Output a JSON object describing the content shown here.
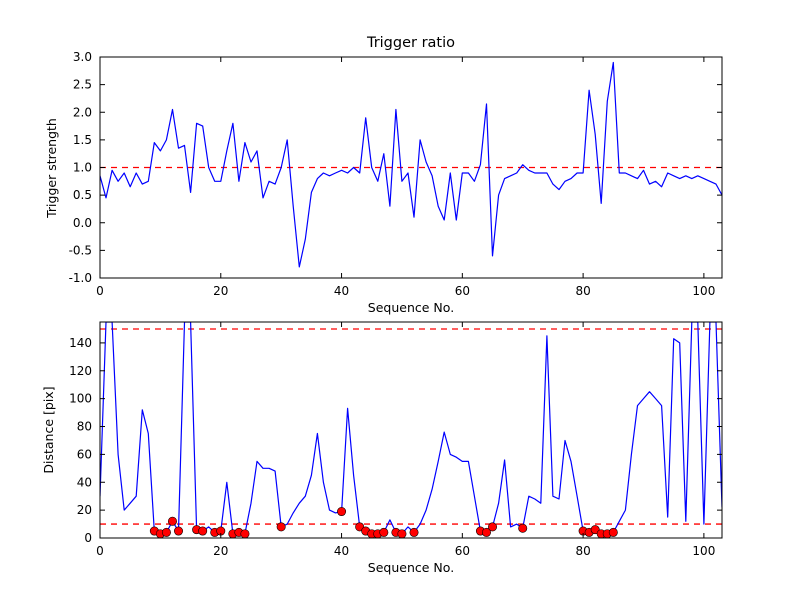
{
  "figure": {
    "background": "#ffffff",
    "border_color": "#000000"
  },
  "chart_data": [
    {
      "type": "line",
      "title": "Trigger ratio",
      "xlabel": "Sequence No.",
      "ylabel": "Trigger strength",
      "xlim": [
        0,
        103
      ],
      "ylim": [
        -1.0,
        3.0
      ],
      "grid": false,
      "legend": "none",
      "xticks": [
        0,
        20,
        40,
        60,
        80,
        100
      ],
      "xtick_labels": [
        "0",
        "20",
        "40",
        "60",
        "80",
        "100"
      ],
      "yticks": [
        -1.0,
        -0.5,
        0.0,
        0.5,
        1.0,
        1.5,
        2.0,
        2.5,
        3.0
      ],
      "ytick_labels": [
        "-1.0",
        "-0.5",
        "0.0",
        "0.5",
        "1.0",
        "1.5",
        "2.0",
        "2.5",
        "3.0"
      ],
      "threshold_color": "#ff0000",
      "threshold_style": "dashed",
      "thresholds": [
        1.0
      ],
      "series": [
        {
          "name": "trigger-strength",
          "color": "#0000ff",
          "x_start": 0,
          "x_step": 1,
          "values": [
            0.85,
            0.45,
            0.95,
            0.75,
            0.9,
            0.65,
            0.9,
            0.7,
            0.75,
            1.45,
            1.3,
            1.5,
            2.05,
            1.35,
            1.4,
            0.55,
            1.8,
            1.75,
            1.0,
            0.75,
            0.75,
            1.3,
            1.8,
            0.75,
            1.45,
            1.1,
            1.3,
            0.45,
            0.75,
            0.7,
            1.0,
            1.5,
            0.3,
            -0.8,
            -0.3,
            0.55,
            0.8,
            0.9,
            0.85,
            0.9,
            0.95,
            0.9,
            1.0,
            0.9,
            1.9,
            1.0,
            0.75,
            1.25,
            0.3,
            2.05,
            0.75,
            0.9,
            0.1,
            1.5,
            1.1,
            0.85,
            0.3,
            0.05,
            0.9,
            0.05,
            0.9,
            0.9,
            0.75,
            1.05,
            2.15,
            -0.6,
            0.5,
            0.8,
            0.85,
            0.9,
            1.05,
            0.95,
            0.9,
            0.9,
            0.9,
            0.7,
            0.6,
            0.75,
            0.8,
            0.9,
            0.9,
            2.4,
            1.6,
            0.35,
            2.2,
            2.9,
            0.9,
            0.9,
            0.85,
            0.8,
            0.95,
            0.7,
            0.75,
            0.65,
            0.9,
            0.85,
            0.8,
            0.85,
            0.8,
            0.85,
            0.8,
            0.75,
            0.7,
            0.5
          ]
        }
      ]
    },
    {
      "type": "line",
      "title": "",
      "xlabel": "Sequence No.",
      "ylabel": "Distance [pix]",
      "xlim": [
        0,
        103
      ],
      "ylim": [
        0,
        155
      ],
      "grid": false,
      "legend": "none",
      "xticks": [
        0,
        20,
        40,
        60,
        80,
        100
      ],
      "xtick_labels": [
        "0",
        "20",
        "40",
        "60",
        "80",
        "100"
      ],
      "yticks": [
        0,
        20,
        40,
        60,
        80,
        100,
        120,
        140
      ],
      "ytick_labels": [
        "0",
        "20",
        "40",
        "60",
        "80",
        "100",
        "120",
        "140"
      ],
      "threshold_color": "#ff0000",
      "threshold_style": "dashed",
      "thresholds": [
        150,
        10
      ],
      "series": [
        {
          "name": "distance",
          "color": "#0000ff",
          "x_start": 0,
          "x_step": 1,
          "values": [
            30,
            155,
            155,
            60,
            20,
            25,
            30,
            92,
            75,
            5,
            3,
            4,
            12,
            5,
            155,
            155,
            6,
            5,
            8,
            4,
            5,
            40,
            3,
            4,
            3,
            25,
            55,
            50,
            50,
            48,
            8,
            10,
            18,
            25,
            30,
            45,
            75,
            40,
            20,
            18,
            19,
            93,
            45,
            8,
            5,
            3,
            3,
            4,
            13,
            4,
            3,
            8,
            4,
            10,
            20,
            35,
            55,
            76,
            60,
            58,
            55,
            55,
            30,
            5,
            4,
            8,
            25,
            56,
            8,
            10,
            7,
            30,
            28,
            25,
            145,
            30,
            28,
            70,
            55,
            30,
            5,
            4,
            6,
            3,
            3,
            4,
            12,
            20,
            60,
            95,
            100,
            105,
            100,
            95,
            15,
            143,
            140,
            12,
            155,
            155,
            10,
            155,
            155,
            22
          ]
        }
      ],
      "scatter": {
        "name": "below-threshold-points",
        "color": "#ff0000",
        "points": [
          [
            9,
            5
          ],
          [
            10,
            3
          ],
          [
            11,
            4
          ],
          [
            12,
            12
          ],
          [
            13,
            5
          ],
          [
            16,
            6
          ],
          [
            17,
            5
          ],
          [
            19,
            4
          ],
          [
            20,
            5
          ],
          [
            22,
            3
          ],
          [
            23,
            4
          ],
          [
            24,
            3
          ],
          [
            30,
            8
          ],
          [
            40,
            19
          ],
          [
            43,
            8
          ],
          [
            44,
            5
          ],
          [
            45,
            3
          ],
          [
            46,
            3
          ],
          [
            47,
            4
          ],
          [
            49,
            4
          ],
          [
            50,
            3
          ],
          [
            52,
            4
          ],
          [
            63,
            5
          ],
          [
            64,
            4
          ],
          [
            65,
            8
          ],
          [
            70,
            7
          ],
          [
            80,
            5
          ],
          [
            81,
            4
          ],
          [
            82,
            6
          ],
          [
            83,
            3
          ],
          [
            84,
            3
          ],
          [
            85,
            4
          ]
        ]
      }
    }
  ]
}
